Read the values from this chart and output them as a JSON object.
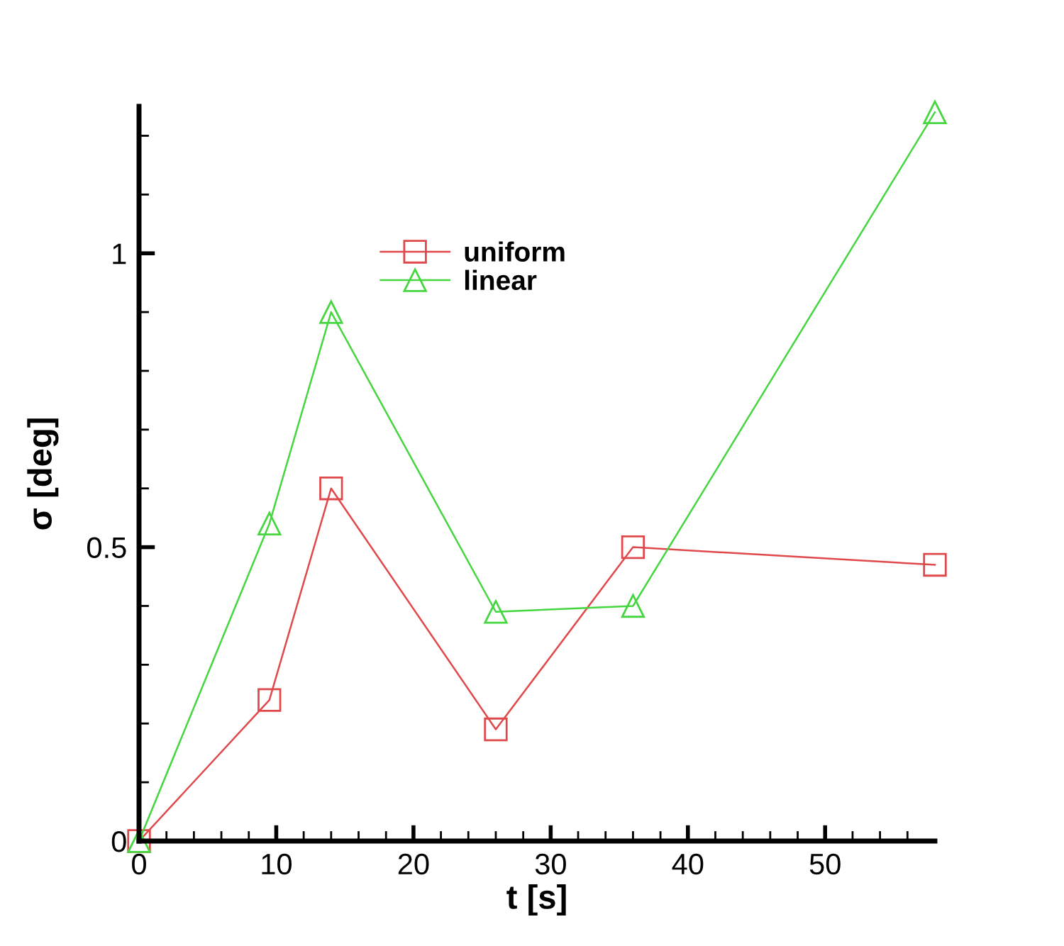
{
  "chart_data": {
    "type": "line",
    "xlabel": "t [s]",
    "ylabel": "σ [deg]",
    "series": [
      {
        "name": "uniform",
        "color": "#e0494b",
        "marker": "square",
        "x": [
          0,
          9.5,
          14,
          26,
          36,
          58
        ],
        "values": [
          0,
          0.24,
          0.6,
          0.19,
          0.5,
          0.47
        ]
      },
      {
        "name": "linear",
        "color": "#45d640",
        "marker": "triangle",
        "x": [
          0,
          9.5,
          14,
          26,
          36,
          58
        ],
        "values": [
          0,
          0.54,
          0.9,
          0.39,
          0.4,
          1.24
        ]
      }
    ],
    "xlim": [
      0,
      58
    ],
    "ylim": [
      0,
      1.25
    ],
    "xticks": [
      0,
      {
        "value": 2,
        "label": null
      },
      {
        "value": 4,
        "label": null
      },
      {
        "value": 6,
        "label": null
      },
      {
        "value": 8,
        "label": null
      },
      10,
      {
        "value": 12,
        "label": null
      },
      {
        "value": 14,
        "label": null
      },
      {
        "value": 16,
        "label": null
      },
      {
        "value": 18,
        "label": null
      },
      20,
      {
        "value": 22,
        "label": null
      },
      {
        "value": 24,
        "label": null
      },
      {
        "value": 26,
        "label": null
      },
      {
        "value": 28,
        "label": null
      },
      30,
      {
        "value": 32,
        "label": null
      },
      {
        "value": 34,
        "label": null
      },
      {
        "value": 36,
        "label": null
      },
      {
        "value": 38,
        "label": null
      },
      40,
      {
        "value": 42,
        "label": null
      },
      {
        "value": 44,
        "label": null
      },
      {
        "value": 46,
        "label": null
      },
      {
        "value": 48,
        "label": null
      },
      50,
      {
        "value": 52,
        "label": null
      },
      {
        "value": 54,
        "label": null
      },
      {
        "value": 56,
        "label": null
      }
    ],
    "yticks": [
      0,
      {
        "value": 0.1,
        "label": null
      },
      {
        "value": 0.2,
        "label": null
      },
      {
        "value": 0.3,
        "label": null
      },
      {
        "value": 0.4,
        "label": null
      },
      0.5,
      {
        "value": 0.6,
        "label": null
      },
      {
        "value": 0.7,
        "label": null
      },
      {
        "value": 0.8,
        "label": null
      },
      {
        "value": 0.9,
        "label": null
      },
      1,
      {
        "value": 1.1,
        "label": null
      },
      {
        "value": 1.2,
        "label": null
      }
    ],
    "grid": false,
    "legend": "top",
    "line_style": "solid"
  }
}
